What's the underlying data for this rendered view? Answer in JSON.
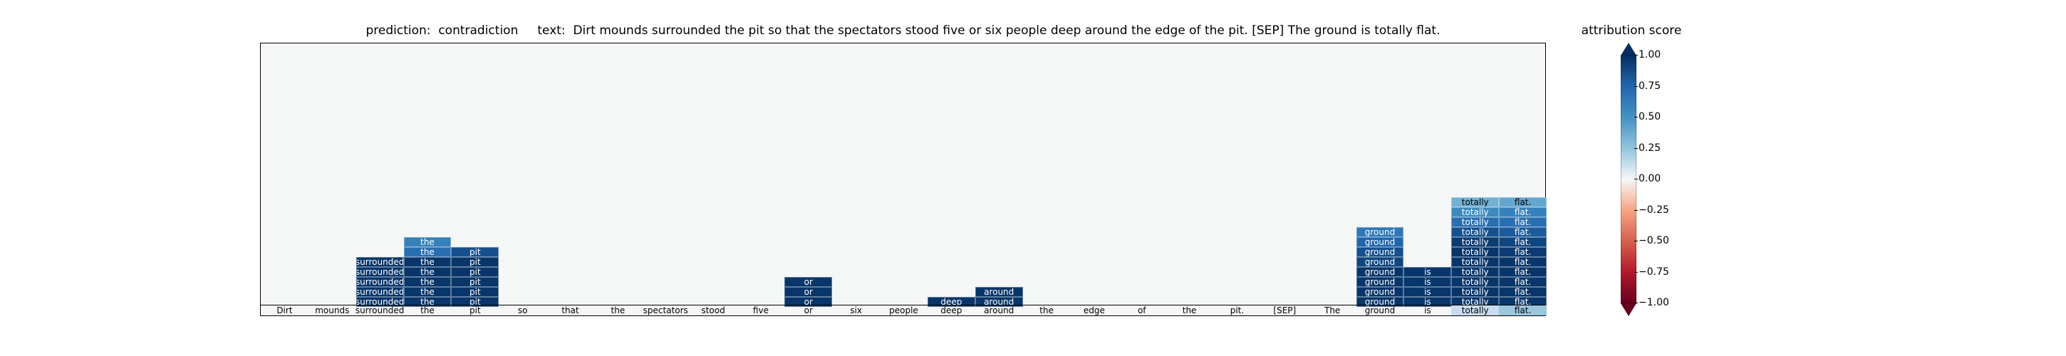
{
  "chart_data": {
    "type": "heatmap",
    "title": "prediction:  contradiction     text:  Dirt mounds surrounded the pit so that the spectators stood five or six people deep around the edge of the pit. [SEP] The ground is totally flat.",
    "tokens": [
      "Dirt",
      "mounds",
      "surrounded",
      "the",
      "pit",
      "so",
      "that",
      "the",
      "spectators",
      "stood",
      "five",
      "or",
      "six",
      "people",
      "deep",
      "around",
      "the",
      "edge",
      "of",
      "the",
      "pit.",
      "[SEP]",
      "The",
      "ground",
      "is",
      "totally",
      "flat."
    ],
    "n_rows": 27,
    "cells": [
      {
        "row": 0,
        "col": 2,
        "v": 0.97
      },
      {
        "row": 1,
        "col": 2,
        "v": 0.97
      },
      {
        "row": 2,
        "col": 2,
        "v": 0.97
      },
      {
        "row": 3,
        "col": 2,
        "v": 0.97
      },
      {
        "row": 4,
        "col": 2,
        "v": 0.97
      },
      {
        "row": 0,
        "col": 3,
        "v": 0.97
      },
      {
        "row": 1,
        "col": 3,
        "v": 0.97
      },
      {
        "row": 2,
        "col": 3,
        "v": 0.97
      },
      {
        "row": 3,
        "col": 3,
        "v": 0.97
      },
      {
        "row": 4,
        "col": 3,
        "v": 0.97
      },
      {
        "row": 5,
        "col": 3,
        "v": 0.7
      },
      {
        "row": 6,
        "col": 3,
        "v": 0.6
      },
      {
        "row": 0,
        "col": 4,
        "v": 0.97
      },
      {
        "row": 1,
        "col": 4,
        "v": 0.97
      },
      {
        "row": 2,
        "col": 4,
        "v": 0.97
      },
      {
        "row": 3,
        "col": 4,
        "v": 0.97
      },
      {
        "row": 4,
        "col": 4,
        "v": 0.97
      },
      {
        "row": 5,
        "col": 4,
        "v": 0.85
      },
      {
        "row": 0,
        "col": 11,
        "v": 0.97
      },
      {
        "row": 1,
        "col": 11,
        "v": 0.97
      },
      {
        "row": 2,
        "col": 11,
        "v": 0.97
      },
      {
        "row": 0,
        "col": 14,
        "v": 0.97
      },
      {
        "row": 0,
        "col": 15,
        "v": 0.97
      },
      {
        "row": 1,
        "col": 15,
        "v": 0.97
      },
      {
        "row": 0,
        "col": 23,
        "v": 0.97
      },
      {
        "row": 1,
        "col": 23,
        "v": 0.97
      },
      {
        "row": 2,
        "col": 23,
        "v": 0.97
      },
      {
        "row": 3,
        "col": 23,
        "v": 0.97
      },
      {
        "row": 4,
        "col": 23,
        "v": 0.9
      },
      {
        "row": 5,
        "col": 23,
        "v": 0.85
      },
      {
        "row": 6,
        "col": 23,
        "v": 0.75
      },
      {
        "row": 7,
        "col": 23,
        "v": 0.65
      },
      {
        "row": 0,
        "col": 24,
        "v": 0.97
      },
      {
        "row": 1,
        "col": 24,
        "v": 0.97
      },
      {
        "row": 2,
        "col": 24,
        "v": 0.97
      },
      {
        "row": 3,
        "col": 24,
        "v": 0.97
      },
      {
        "row": 0,
        "col": 25,
        "v": 0.97
      },
      {
        "row": 1,
        "col": 25,
        "v": 0.97
      },
      {
        "row": 2,
        "col": 25,
        "v": 0.97
      },
      {
        "row": 3,
        "col": 25,
        "v": 0.97
      },
      {
        "row": 4,
        "col": 25,
        "v": 0.97
      },
      {
        "row": 5,
        "col": 25,
        "v": 0.97
      },
      {
        "row": 6,
        "col": 25,
        "v": 0.95
      },
      {
        "row": 7,
        "col": 25,
        "v": 0.85
      },
      {
        "row": 8,
        "col": 25,
        "v": 0.7
      },
      {
        "row": 9,
        "col": 25,
        "v": 0.55
      },
      {
        "row": 10,
        "col": 25,
        "v": 0.35
      },
      {
        "row": 0,
        "col": 26,
        "v": 0.97
      },
      {
        "row": 1,
        "col": 26,
        "v": 0.97
      },
      {
        "row": 2,
        "col": 26,
        "v": 0.97
      },
      {
        "row": 3,
        "col": 26,
        "v": 0.97
      },
      {
        "row": 4,
        "col": 26,
        "v": 0.97
      },
      {
        "row": 5,
        "col": 26,
        "v": 0.95
      },
      {
        "row": 6,
        "col": 26,
        "v": 0.9
      },
      {
        "row": 7,
        "col": 26,
        "v": 0.8
      },
      {
        "row": 8,
        "col": 26,
        "v": 0.7
      },
      {
        "row": 9,
        "col": 26,
        "v": 0.6
      },
      {
        "row": 10,
        "col": 26,
        "v": 0.4
      }
    ],
    "colorbar": {
      "label": "attribution score",
      "range": [
        -1.0,
        1.0
      ],
      "ticks": [
        "1.00",
        "0.75",
        "0.50",
        "0.25",
        "0.00",
        "−0.25",
        "−0.50",
        "−0.75",
        "−1.00"
      ],
      "tick_values": [
        1.0,
        0.75,
        0.5,
        0.25,
        0.0,
        -0.25,
        -0.5,
        -0.75,
        -1.0
      ],
      "colormap": "RdBu"
    }
  }
}
